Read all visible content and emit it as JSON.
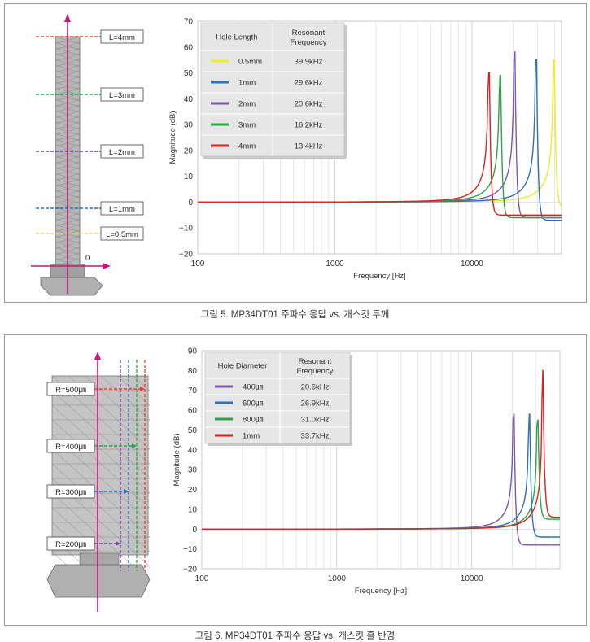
{
  "figures": [
    {
      "caption": "그림 5. MP34DT01 주파수 응답 vs. 개스킷 두께",
      "diagram": {
        "labels": [
          "L=4mm",
          "L=3mm",
          "L=2mm",
          "L=1mm",
          "L=0.5mm"
        ],
        "label_colors": [
          "#e8412c",
          "#2fa24a",
          "#6a3fa0",
          "#2e6bb5",
          "#e3dc3c"
        ],
        "origin_label": "0"
      },
      "legend": {
        "header_left": "Hole Length",
        "header_right": [
          "Resonant",
          "Frequency"
        ],
        "rows": [
          {
            "label": "0.5mm",
            "value": "39.9kHz",
            "color": "#eeee22"
          },
          {
            "label": "1mm",
            "value": "29.6kHz",
            "color": "#2f6fc0"
          },
          {
            "label": "2mm",
            "value": "20.6kHz",
            "color": "#7a58b0"
          },
          {
            "label": "3mm",
            "value": "16.2kHz",
            "color": "#2fa24a"
          },
          {
            "label": "4mm",
            "value": "13.4kHz",
            "color": "#e02020"
          }
        ]
      },
      "chart_data": {
        "type": "line",
        "xlabel": "Frequency [Hz]",
        "ylabel": "Magnitude (dB)",
        "xscale": "log",
        "xlim": [
          100,
          45000
        ],
        "ylim": [
          -20,
          70
        ],
        "xticks": [
          "100",
          "1000",
          "10000"
        ],
        "yticks": [
          "70",
          "60",
          "50",
          "40",
          "30",
          "20",
          "10",
          "0",
          "−10",
          "−20"
        ],
        "grid": "vertical",
        "legend_position": "top-left",
        "series": [
          {
            "name": "0.5mm",
            "color": "#eeee22",
            "resonance_hz": 39900,
            "peak_db": 55,
            "end_db": -2
          },
          {
            "name": "1mm",
            "color": "#2f6fc0",
            "resonance_hz": 29600,
            "peak_db": 55,
            "end_db": -7
          },
          {
            "name": "2mm",
            "color": "#7a58b0",
            "resonance_hz": 20600,
            "peak_db": 58,
            "end_db": -6
          },
          {
            "name": "3mm",
            "color": "#2fa24a",
            "resonance_hz": 16200,
            "peak_db": 49,
            "end_db": -6
          },
          {
            "name": "4mm",
            "color": "#e02020",
            "resonance_hz": 13400,
            "peak_db": 50,
            "end_db": -5
          }
        ]
      }
    },
    {
      "caption": "그림 6. MP34DT01 주파수 응답 vs. 개스킷 홀 반경",
      "diagram": {
        "labels": [
          "R=500㎛",
          "R=400㎛",
          "R=300㎛",
          "R=200㎛"
        ],
        "label_colors": [
          "#e8412c",
          "#2fa24a",
          "#2e6bb5",
          "#6a3fa0"
        ]
      },
      "legend": {
        "header_left": "Hole Diameter",
        "header_right": [
          "Resonant",
          "Frequency"
        ],
        "rows": [
          {
            "label": "400㎛",
            "value": "20.6kHz",
            "color": "#7a58b0"
          },
          {
            "label": "600㎛",
            "value": "26.9kHz",
            "color": "#2f6fc0"
          },
          {
            "label": "800㎛",
            "value": "31.0kHz",
            "color": "#2fa24a"
          },
          {
            "label": "1mm",
            "value": "33.7kHz",
            "color": "#e02020"
          }
        ]
      },
      "chart_data": {
        "type": "line",
        "xlabel": "Frequency [Hz]",
        "ylabel": "Magnitude (dB)",
        "xscale": "log",
        "xlim": [
          100,
          45000
        ],
        "ylim": [
          -20,
          90
        ],
        "xticks": [
          "100",
          "1000",
          "10000"
        ],
        "yticks": [
          "90",
          "80",
          "70",
          "60",
          "50",
          "40",
          "30",
          "20",
          "10",
          "0",
          "−10",
          "−20"
        ],
        "grid": "vertical",
        "legend_position": "top-left",
        "series": [
          {
            "name": "400㎛",
            "color": "#7a58b0",
            "resonance_hz": 20600,
            "peak_db": 58,
            "end_db": -8
          },
          {
            "name": "600㎛",
            "color": "#2f6fc0",
            "resonance_hz": 26900,
            "peak_db": 58,
            "end_db": -4
          },
          {
            "name": "800㎛",
            "color": "#2fa24a",
            "resonance_hz": 31000,
            "peak_db": 55,
            "end_db": 5
          },
          {
            "name": "1mm",
            "color": "#e02020",
            "resonance_hz": 33700,
            "peak_db": 80,
            "end_db": 6
          }
        ]
      }
    }
  ]
}
